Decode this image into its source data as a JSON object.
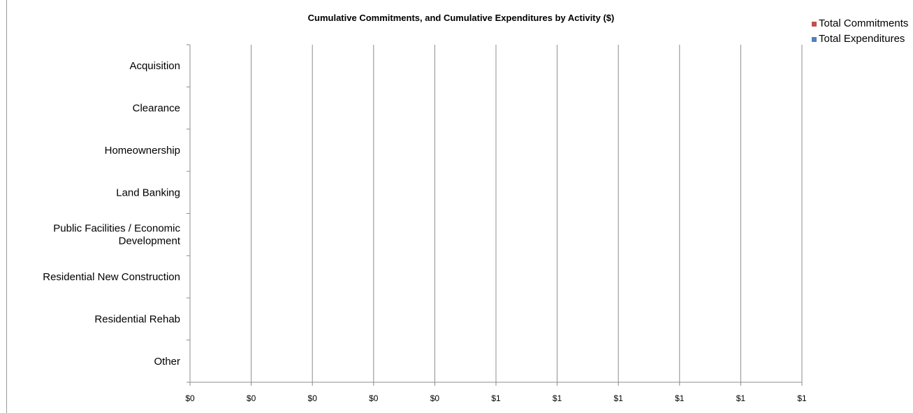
{
  "chart_data": {
    "type": "bar",
    "orientation": "horizontal",
    "title": "Cumulative Commitments, and Cumulative Expenditures by Activity ($)",
    "categories": [
      "Acquisition",
      "Clearance",
      "Homeownership",
      "Land Banking",
      "Public Facilities / Economic Development",
      "Residential New Construction",
      "Residential Rehab",
      "Other"
    ],
    "series": [
      {
        "name": "Total Commitments",
        "color": "#c0504d",
        "values": [
          0,
          0,
          0,
          0,
          0,
          0,
          0,
          0
        ]
      },
      {
        "name": "Total Expenditures",
        "color": "#4f81bd",
        "values": [
          0,
          0,
          0,
          0,
          0,
          0,
          0,
          0
        ]
      }
    ],
    "x_ticks": [
      "$0",
      "$0",
      "$0",
      "$0",
      "$0",
      "$1",
      "$1",
      "$1",
      "$1",
      "$1",
      "$1"
    ],
    "xlim": [
      0,
      1
    ],
    "grid": true,
    "legend_position": "top-right"
  }
}
